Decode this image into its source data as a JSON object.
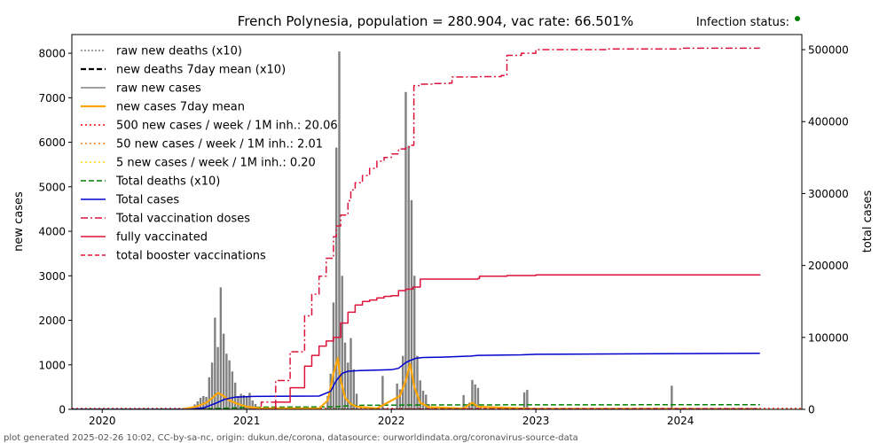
{
  "chart_data": {
    "type": "bar",
    "title": "French Polynesia, population = 280.904, vac rate: 66.501%",
    "infection_status_label": "Infection status:",
    "status_dot_color": "#008000",
    "ylabel_left": "new cases",
    "ylabel_right": "total cases",
    "xlabel": "",
    "footer": "plot generated 2025-02-26 10:02, CC-by-sa-nc, origin: dukun.de/corona, datasource: ourworldindata.org/coronavirus-source-data",
    "x_ticks": [
      "2020",
      "2021",
      "2022",
      "2023",
      "2024"
    ],
    "x_tick_values": [
      2020.0,
      2021.0,
      2022.0,
      2023.0,
      2024.0
    ],
    "xlim": [
      2019.79,
      2024.84
    ],
    "y_left_ticks": [
      "0",
      "1000",
      "2000",
      "3000",
      "4000",
      "5000",
      "6000",
      "7000",
      "8000"
    ],
    "y_left_values": [
      0,
      1000,
      2000,
      3000,
      4000,
      5000,
      6000,
      7000,
      8000
    ],
    "ylim_left": [
      0,
      8420
    ],
    "y_right_ticks": [
      "0",
      "100000",
      "200000",
      "300000",
      "400000",
      "500000"
    ],
    "y_right_values": [
      0,
      100000,
      200000,
      300000,
      400000,
      500000
    ],
    "ylim_right": [
      0,
      521000
    ],
    "grid": false,
    "legend_position": "top-left",
    "legend": [
      {
        "label": "raw new deaths (x10)",
        "color": "#808080",
        "dash": "2,2",
        "width": 1.5
      },
      {
        "label": "new deaths 7day mean (x10)",
        "color": "#000000",
        "dash": "6,3",
        "width": 2.2
      },
      {
        "label": "raw new cases",
        "color": "#808080",
        "dash": "",
        "width": 1.5
      },
      {
        "label": "new cases 7day mean",
        "color": "#ffa500",
        "dash": "",
        "width": 2.2
      },
      {
        "label": "500 new cases / week / 1M inh.: 20.06",
        "color": "#ff0000",
        "dash": "2,3",
        "width": 1.5
      },
      {
        "label": "50 new cases / week / 1M inh.: 2.01",
        "color": "#ff7f0e",
        "dash": "2,3",
        "width": 1.5
      },
      {
        "label": "5 new cases / week / 1M inh.: 0.20",
        "color": "#ffd700",
        "dash": "2,3",
        "width": 1.5
      },
      {
        "label": "Total deaths (x10)",
        "color": "#008000",
        "dash": "6,3",
        "width": 1.5
      },
      {
        "label": "Total cases",
        "color": "#0000cd",
        "dash": "",
        "width": 1.5
      },
      {
        "label": "Total vaccination doses",
        "color": "#dc143c",
        "dash": "8,3,2,3",
        "width": 1.5
      },
      {
        "label": "fully vaccinated",
        "color": "#dc143c",
        "dash": "",
        "width": 1.5
      },
      {
        "label": "total booster vaccinations",
        "color": "#dc143c",
        "dash": "5,3",
        "width": 1.5
      }
    ],
    "raw_new_cases": {
      "x": [
        2020.62,
        2020.64,
        2020.66,
        2020.68,
        2020.7,
        2020.72,
        2020.74,
        2020.76,
        2020.78,
        2020.8,
        2020.82,
        2020.84,
        2020.86,
        2020.88,
        2020.9,
        2020.92,
        2020.94,
        2020.96,
        2020.98,
        2021.0,
        2021.02,
        2021.04,
        2021.06,
        2021.56,
        2021.58,
        2021.6,
        2021.62,
        2021.64,
        2021.66,
        2021.68,
        2021.7,
        2021.72,
        2021.74,
        2021.76,
        2021.94,
        2022.04,
        2022.06,
        2022.08,
        2022.1,
        2022.12,
        2022.14,
        2022.16,
        2022.18,
        2022.2,
        2022.22,
        2022.24,
        2022.26,
        2022.5,
        2022.54,
        2022.56,
        2022.58,
        2022.6,
        2022.92,
        2022.94,
        2023.94
      ],
      "y": [
        60,
        110,
        180,
        260,
        300,
        280,
        720,
        1050,
        2060,
        1400,
        2740,
        1700,
        1250,
        1100,
        850,
        600,
        300,
        350,
        320,
        300,
        370,
        200,
        120,
        300,
        800,
        2400,
        5880,
        8040,
        3000,
        1500,
        1050,
        1600,
        900,
        350,
        750,
        580,
        450,
        1200,
        7130,
        5920,
        4700,
        3000,
        1200,
        650,
        420,
        330,
        120,
        320,
        150,
        660,
        560,
        480,
        380,
        440,
        530
      ]
    },
    "new_cases_7day_mean": {
      "x": [
        2020.55,
        2020.65,
        2020.72,
        2020.76,
        2020.8,
        2020.84,
        2020.88,
        2020.94,
        2021.0,
        2021.1,
        2021.5,
        2021.56,
        2021.6,
        2021.63,
        2021.65,
        2021.68,
        2021.72,
        2021.76,
        2021.9,
        2022.06,
        2022.1,
        2022.13,
        2022.16,
        2022.2,
        2022.26,
        2022.5,
        2022.56,
        2022.6,
        2022.9,
        2023.0,
        2024.0,
        2024.55
      ],
      "y": [
        0,
        60,
        150,
        250,
        370,
        300,
        200,
        120,
        60,
        20,
        20,
        200,
        800,
        1150,
        650,
        260,
        120,
        60,
        20,
        300,
        650,
        1020,
        500,
        150,
        50,
        20,
        150,
        60,
        20,
        10,
        10,
        0
      ]
    },
    "threshold_500_per_week_per_1M": 20.06,
    "threshold_50_per_week_per_1M": 2.01,
    "threshold_5_per_week_per_1M": 0.2,
    "total_cases": {
      "x": [
        2019.79,
        2020.6,
        2020.7,
        2020.78,
        2020.85,
        2020.92,
        2021.05,
        2021.5,
        2021.58,
        2021.62,
        2021.66,
        2021.7,
        2021.78,
        2022.0,
        2022.05,
        2022.1,
        2022.13,
        2022.17,
        2022.22,
        2022.35,
        2022.55,
        2022.6,
        2022.9,
        2023.0,
        2024.0,
        2024.55
      ],
      "y": [
        0,
        0,
        2000,
        8000,
        14000,
        17000,
        18000,
        18500,
        25000,
        40000,
        50000,
        53000,
        54000,
        55000,
        57000,
        65000,
        68000,
        71000,
        72000,
        72500,
        74000,
        75000,
        75800,
        76500,
        77500,
        77800
      ]
    },
    "total_deaths_x10": {
      "x": [
        2019.79,
        2020.6,
        2020.85,
        2021.05,
        2021.6,
        2021.75,
        2022.15,
        2022.3,
        2024.55
      ],
      "y": [
        0,
        0,
        1500,
        3000,
        3500,
        5500,
        6000,
        6200,
        6500
      ]
    },
    "total_vaccination_doses": {
      "x": [
        2021.02,
        2021.1,
        2021.2,
        2021.3,
        2021.4,
        2021.45,
        2021.5,
        2021.55,
        2021.6,
        2021.62,
        2021.65,
        2021.7,
        2021.72,
        2021.75,
        2021.8,
        2021.85,
        2021.9,
        2021.95,
        2022.0,
        2022.05,
        2022.1,
        2022.13,
        2022.155,
        2022.156,
        2022.2,
        2022.3,
        2022.4,
        2022.42,
        2022.6,
        2022.76,
        2022.8,
        2022.9,
        2023.0,
        2023.5,
        2024.0,
        2024.55
      ],
      "y": [
        0,
        10000,
        40000,
        80000,
        130000,
        160000,
        185000,
        210000,
        240000,
        255000,
        270000,
        290000,
        305000,
        315000,
        325000,
        335000,
        345000,
        350000,
        355000,
        362000,
        365000,
        367000,
        368000,
        450000,
        452000,
        453000,
        453500,
        462000,
        462500,
        464000,
        492000,
        495000,
        500000,
        501000,
        502000,
        502000
      ]
    },
    "fully_vaccinated": {
      "x": [
        2021.1,
        2021.2,
        2021.3,
        2021.4,
        2021.45,
        2021.5,
        2021.55,
        2021.6,
        2021.65,
        2021.7,
        2021.75,
        2021.8,
        2021.85,
        2021.9,
        2021.95,
        2022.0,
        2022.05,
        2022.1,
        2022.15,
        2022.2,
        2022.6,
        2022.61,
        2022.8,
        2023.0,
        2023.5,
        2024.0,
        2024.55
      ],
      "y": [
        0,
        10000,
        30000,
        60000,
        75000,
        88000,
        95000,
        100000,
        120000,
        135000,
        145000,
        150000,
        152000,
        155000,
        157000,
        158000,
        165000,
        167000,
        170000,
        181000,
        182000,
        185000,
        186000,
        187000,
        187000,
        187000,
        187500
      ]
    },
    "total_booster_vaccinations": {
      "x": [
        2021.75,
        2022.0,
        2022.5,
        2023.0,
        2024.55
      ],
      "y": [
        0,
        200,
        500,
        800,
        1000
      ]
    }
  }
}
